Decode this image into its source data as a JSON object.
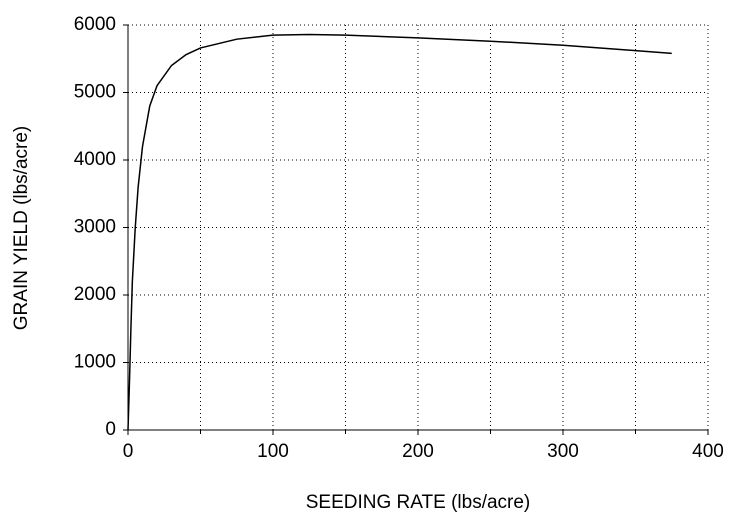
{
  "chart_data": {
    "type": "line",
    "x_label": "SEEDING RATE (lbs/acre)",
    "y_label": "GRAIN YIELD (lbs/acre)",
    "x": [
      0,
      1,
      2,
      3,
      5,
      7,
      10,
      15,
      20,
      30,
      40,
      50,
      75,
      100,
      125,
      150,
      200,
      250,
      300,
      350,
      375
    ],
    "series": [
      {
        "color": "#000000",
        "values": [
          0,
          700,
          1500,
          2200,
          3000,
          3600,
          4200,
          4800,
          5100,
          5400,
          5560,
          5660,
          5790,
          5850,
          5860,
          5850,
          5810,
          5760,
          5700,
          5620,
          5580
        ]
      }
    ],
    "xlim": [
      0,
      400
    ],
    "xticks": [
      0,
      100,
      200,
      300,
      400
    ],
    "xminor_ticks": [
      50,
      150,
      250,
      350
    ],
    "ylim": [
      0,
      6000
    ],
    "yticks": [
      0,
      1000,
      2000,
      3000,
      4000,
      5000,
      6000
    ],
    "grid": true
  }
}
